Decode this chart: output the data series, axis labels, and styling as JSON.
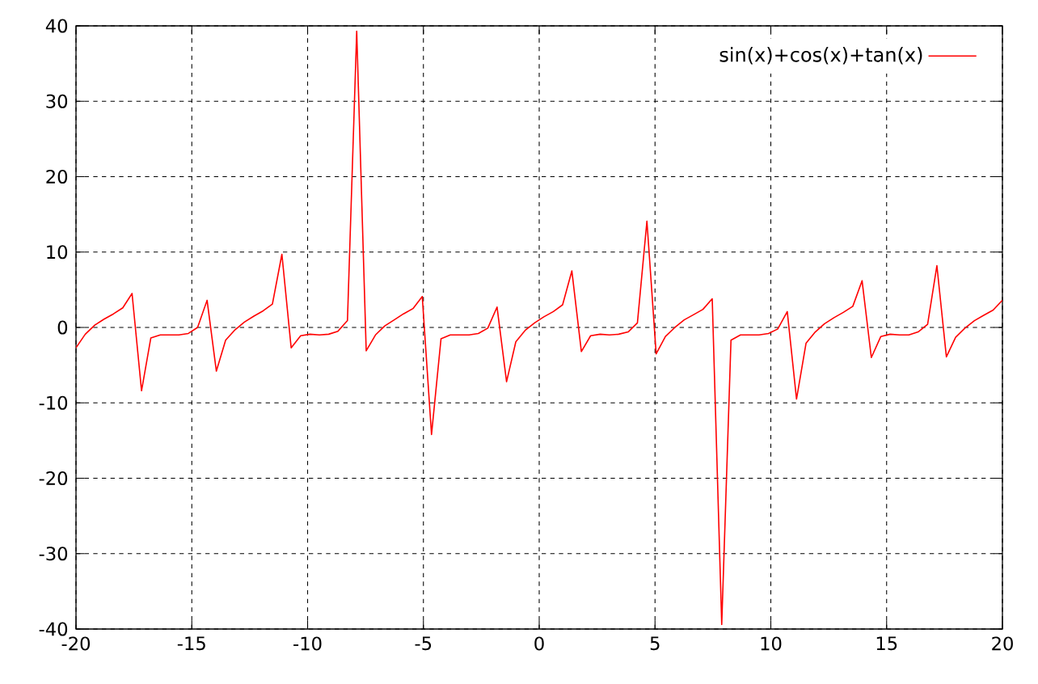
{
  "chart_data": {
    "type": "line",
    "x": [
      -20,
      -19.6,
      -19.19,
      -18.79,
      -18.38,
      -17.98,
      -17.58,
      -17.17,
      -16.77,
      -16.36,
      -15.96,
      -15.56,
      -15.15,
      -14.75,
      -14.34,
      -13.94,
      -13.54,
      -13.13,
      -12.73,
      -12.32,
      -11.92,
      -11.52,
      -11.11,
      -10.71,
      -10.3,
      -9.9,
      -9.49,
      -9.09,
      -8.69,
      -8.28,
      -7.88,
      -7.47,
      -7.07,
      -6.67,
      -6.26,
      -5.86,
      -5.45,
      -5.05,
      -4.65,
      -4.24,
      -3.84,
      -3.43,
      -3.03,
      -2.63,
      -2.22,
      -1.82,
      -1.41,
      -1.01,
      -0.61,
      -0.2,
      0.2,
      0.61,
      1.01,
      1.41,
      1.82,
      2.22,
      2.63,
      3.03,
      3.43,
      3.84,
      4.24,
      4.65,
      5.05,
      5.45,
      5.86,
      6.26,
      6.67,
      7.07,
      7.47,
      7.88,
      8.28,
      8.69,
      9.09,
      9.49,
      9.9,
      10.3,
      10.71,
      11.11,
      11.52,
      11.92,
      12.32,
      12.73,
      13.13,
      13.54,
      13.94,
      14.34,
      14.75,
      15.15,
      15.56,
      15.96,
      16.36,
      16.77,
      17.17,
      17.58,
      17.98,
      18.38,
      18.79,
      19.19,
      19.6,
      20
    ],
    "series": [
      {
        "name": "sin(x)+cos(x)+tan(x)",
        "color": "#ff0000",
        "values": [
          -2.7,
          -0.9,
          0.3,
          1.1,
          1.8,
          2.6,
          4.5,
          -8.4,
          -1.4,
          -1.0,
          -1.0,
          -1.0,
          -0.8,
          0.0,
          3.6,
          -5.8,
          -1.7,
          -0.3,
          0.7,
          1.5,
          2.2,
          3.1,
          9.7,
          -2.7,
          -1.1,
          -0.9,
          -1.0,
          -0.9,
          -0.5,
          0.9,
          39.3,
          -3.1,
          -1.0,
          0.2,
          1.0,
          1.8,
          2.5,
          4.1,
          -14.2,
          -1.5,
          -1.0,
          -1.0,
          -1.0,
          -0.8,
          -0.1,
          2.7,
          -7.2,
          -1.9,
          -0.4,
          0.6,
          1.4,
          2.1,
          3.0,
          7.5,
          -3.2,
          -1.1,
          -0.9,
          -1.0,
          -0.9,
          -0.6,
          0.6,
          14.1,
          -3.5,
          -1.2,
          0.0,
          1.0,
          1.7,
          2.4,
          3.8,
          -39.4,
          -1.7,
          -1.0,
          -1.0,
          -1.0,
          -0.8,
          -0.2,
          2.1,
          -9.5,
          -2.1,
          -0.6,
          0.5,
          1.3,
          2.0,
          2.8,
          6.2,
          -4.0,
          -1.2,
          -0.9,
          -1.0,
          -1.0,
          -0.6,
          0.4,
          8.2,
          -3.9,
          -1.3,
          -0.1,
          0.9,
          1.6,
          2.3,
          3.6
        ]
      }
    ],
    "xlim": [
      -20,
      20
    ],
    "ylim": [
      -40,
      40
    ],
    "xticks": [
      -20,
      -15,
      -10,
      -5,
      0,
      5,
      10,
      15,
      20
    ],
    "yticks": [
      -40,
      -30,
      -20,
      -10,
      0,
      10,
      20,
      30,
      40
    ],
    "grid": true,
    "legend": "top right"
  }
}
